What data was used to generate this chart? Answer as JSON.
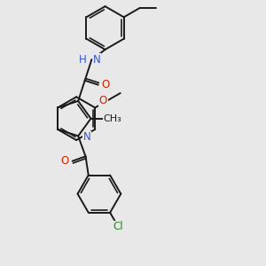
{
  "bg_color": "#e8e8e8",
  "bond_color": "#1a1a1a",
  "bond_lw": 1.4,
  "font_size": 8.5,
  "atom_colors": {
    "N": "#3355cc",
    "O": "#cc2200",
    "Cl": "#228822",
    "C": "#1a1a1a"
  },
  "figsize": [
    3.0,
    3.0
  ],
  "dpi": 100
}
